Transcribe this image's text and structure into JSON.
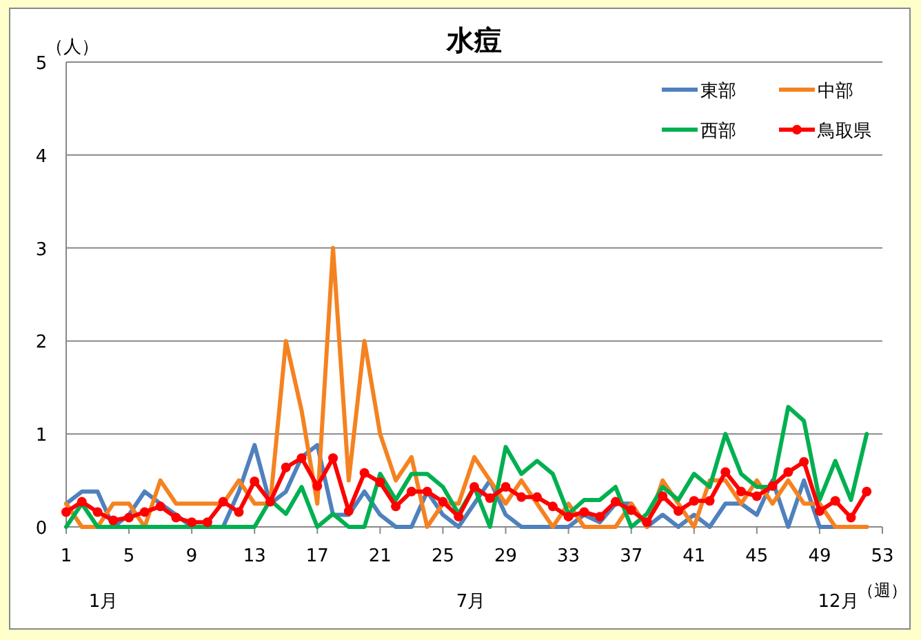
{
  "chart_data": {
    "type": "line",
    "title": "水痘",
    "xlabel": "（週）",
    "ylabel": "（人）",
    "x": [
      1,
      2,
      3,
      4,
      5,
      6,
      7,
      8,
      9,
      10,
      11,
      12,
      13,
      14,
      15,
      16,
      17,
      18,
      19,
      20,
      21,
      22,
      23,
      24,
      25,
      26,
      27,
      28,
      29,
      30,
      31,
      32,
      33,
      34,
      35,
      36,
      37,
      38,
      39,
      40,
      41,
      42,
      43,
      44,
      45,
      46,
      47,
      48,
      49,
      50,
      51,
      52
    ],
    "xlim": [
      1,
      53
    ],
    "xticks": [
      1,
      5,
      9,
      13,
      17,
      21,
      25,
      29,
      33,
      37,
      41,
      45,
      49,
      53
    ],
    "ylim": [
      0,
      5
    ],
    "yticks": [
      0,
      1,
      2,
      3,
      4,
      5
    ],
    "grid": "y",
    "legend": "top right",
    "annotations": [
      "1月",
      "7月",
      "12月"
    ],
    "series": [
      {
        "name": "東部",
        "color": "#4f81bd",
        "marker": "none",
        "values": [
          0.25,
          0.38,
          0.38,
          0,
          0.13,
          0.38,
          0.25,
          0.13,
          0,
          0,
          0,
          0.38,
          0.88,
          0.25,
          0.38,
          0.75,
          0.88,
          0.13,
          0.13,
          0.38,
          0.13,
          0,
          0,
          0.38,
          0.13,
          0,
          0.25,
          0.5,
          0.13,
          0,
          0,
          0,
          0,
          0.13,
          0.05,
          0.25,
          0.25,
          0,
          0.13,
          0,
          0.13,
          0,
          0.25,
          0.25,
          0.13,
          0.5,
          0,
          0.5,
          0,
          0,
          0,
          0
        ]
      },
      {
        "name": "中部",
        "color": "#f58220",
        "marker": "none",
        "values": [
          0.25,
          0,
          0,
          0.25,
          0.25,
          0,
          0.5,
          0.25,
          0.25,
          0.25,
          0.25,
          0.5,
          0.25,
          0.25,
          2,
          1.25,
          0.25,
          3,
          0.5,
          2,
          1,
          0.5,
          0.75,
          0,
          0.25,
          0.25,
          0.75,
          0.5,
          0.25,
          0.5,
          0.25,
          0,
          0.25,
          0,
          0,
          0,
          0.25,
          0,
          0.5,
          0.25,
          0,
          0.5,
          0.5,
          0.25,
          0.5,
          0.25,
          0.5,
          0.25,
          0.25,
          0,
          0,
          0
        ]
      },
      {
        "name": "西部",
        "color": "#00b050",
        "marker": "none",
        "values": [
          0,
          0.25,
          0,
          0,
          0,
          0,
          0,
          0,
          0,
          0,
          0,
          0,
          0,
          0.29,
          0.14,
          0.43,
          0,
          0.14,
          0,
          0,
          0.57,
          0.29,
          0.57,
          0.57,
          0.43,
          0.14,
          0.43,
          0,
          0.86,
          0.57,
          0.71,
          0.57,
          0.14,
          0.29,
          0.29,
          0.43,
          0,
          0.14,
          0.43,
          0.29,
          0.57,
          0.43,
          1,
          0.57,
          0.43,
          0.43,
          1.29,
          1.14,
          0.29,
          0.71,
          0.29,
          1
        ]
      },
      {
        "name": "鳥取県",
        "color": "#ff0000",
        "marker": "circle",
        "values": [
          0.16,
          0.27,
          0.16,
          0.07,
          0.1,
          0.16,
          0.22,
          0.1,
          0.05,
          0.05,
          0.27,
          0.16,
          0.49,
          0.27,
          0.64,
          0.74,
          0.44,
          0.74,
          0.17,
          0.58,
          0.48,
          0.22,
          0.38,
          0.38,
          0.27,
          0.11,
          0.43,
          0.31,
          0.43,
          0.32,
          0.32,
          0.22,
          0.11,
          0.16,
          0.11,
          0.27,
          0.18,
          0.05,
          0.33,
          0.17,
          0.28,
          0.28,
          0.59,
          0.38,
          0.33,
          0.44,
          0.59,
          0.7,
          0.17,
          0.28,
          0.1,
          0.38
        ]
      }
    ]
  }
}
